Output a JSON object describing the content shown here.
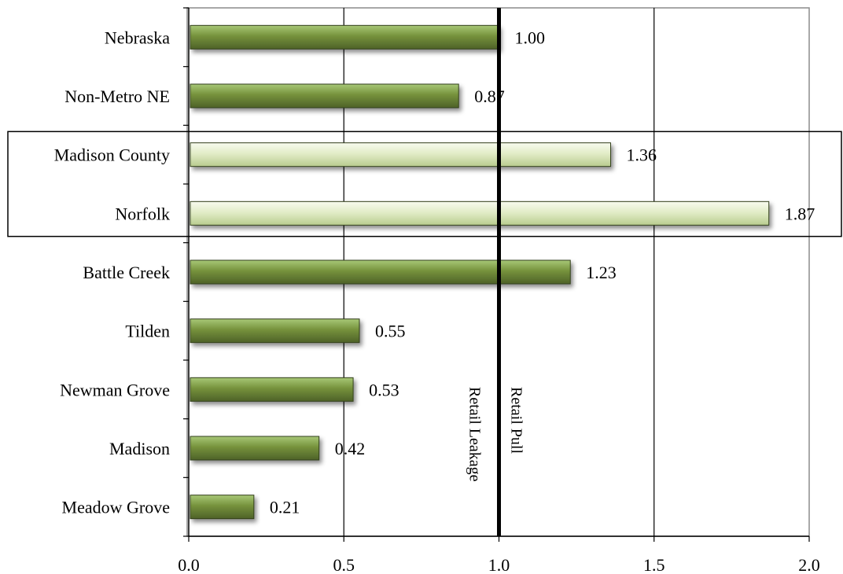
{
  "chart_data": {
    "type": "bar",
    "orientation": "horizontal",
    "title": "",
    "xlabel": "",
    "ylabel": "",
    "categories": [
      "Nebraska",
      "Non-Metro NE",
      "Madison County",
      "Norfolk",
      "Battle Creek",
      "Tilden",
      "Newman Grove",
      "Madison",
      "Meadow Grove"
    ],
    "values": [
      1.0,
      0.87,
      1.36,
      1.87,
      1.23,
      0.55,
      0.53,
      0.42,
      0.21
    ],
    "value_labels": [
      "1.00",
      "0.87",
      "1.36",
      "1.87",
      "1.23",
      "0.55",
      "0.53",
      "0.42",
      "0.21"
    ],
    "highlighted_categories": [
      "Madison County",
      "Norfolk"
    ],
    "xlim": [
      0,
      2.0
    ],
    "xticks": [
      "0.0",
      "0.5",
      "1.0",
      "1.5",
      "2.0"
    ],
    "reference_line": {
      "value": 1.0,
      "left_label": "Retail Leakage",
      "right_label": "Retail Pull"
    },
    "grid": true,
    "legend": "none",
    "colors": {
      "bar_dark_top": "#a8c877",
      "bar_dark_mid": "#76923c",
      "bar_dark_bottom": "#4e6228",
      "bar_light_top": "#f8fbef",
      "bar_light_mid": "#dfeac3",
      "bar_light_bottom": "#b9cc8f",
      "bar_edge": "#33411a",
      "gridline": "#000000",
      "reference_line": "#000000"
    }
  }
}
